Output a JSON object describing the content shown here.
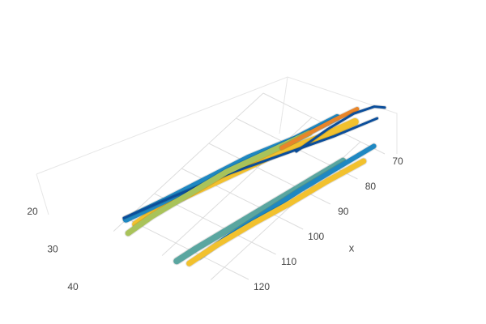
{
  "chart_data": {
    "type": "streamtube",
    "xaxis_title": "x",
    "xlim": [
      70,
      125
    ],
    "xticks": [
      70,
      80,
      90,
      100,
      110,
      120
    ],
    "ylim": [
      20,
      45
    ],
    "yticks": [
      20,
      30,
      40
    ],
    "grid": true,
    "series": [
      {
        "color": "#f2c12e",
        "width": 9,
        "x": [
          72,
          80,
          90,
          100,
          110,
          118,
          124
        ],
        "y": [
          40,
          37,
          33,
          30,
          27,
          25,
          24
        ],
        "z": [
          14,
          12,
          11,
          10,
          9,
          9,
          8
        ]
      },
      {
        "color": "#1f88c2",
        "width": 8,
        "x": [
          75,
          85,
          95,
          105,
          115,
          124
        ],
        "y": [
          38,
          35,
          31,
          28,
          25,
          22
        ],
        "z": [
          18,
          16,
          14,
          12,
          10,
          8
        ]
      },
      {
        "color": "#0b4e9b",
        "width": 3,
        "x": [
          71,
          80,
          90,
          100,
          112,
          123
        ],
        "y": [
          44,
          40,
          35,
          30,
          25,
          21
        ],
        "z": [
          20,
          17,
          14,
          11,
          8,
          6
        ]
      },
      {
        "color": "#a9c35a",
        "width": 7,
        "x": [
          78,
          88,
          98,
          108,
          118,
          125
        ],
        "y": [
          34,
          31,
          28,
          26,
          24,
          23
        ],
        "z": [
          8,
          7,
          6,
          5,
          4,
          3
        ]
      },
      {
        "color": "#e8852a",
        "width": 5,
        "x": [
          73,
          78,
          84,
          90
        ],
        "y": [
          41,
          39,
          37,
          35
        ],
        "z": [
          24,
          22,
          20,
          18
        ]
      },
      {
        "color": "#5aa6a0",
        "width": 8,
        "x": [
          80,
          90,
          100,
          110,
          120,
          125
        ],
        "y": [
          42,
          40,
          38,
          36,
          34,
          33
        ],
        "z": [
          6,
          5,
          4,
          3,
          2,
          1
        ]
      },
      {
        "color": "#1f88c2",
        "width": 6,
        "x": [
          74,
          84,
          94,
          104,
          114,
          122
        ],
        "y": [
          45,
          43,
          41,
          39,
          37,
          36
        ],
        "z": [
          10,
          9,
          8,
          6,
          4,
          3
        ]
      },
      {
        "color": "#f2c12e",
        "width": 7,
        "x": [
          76,
          86,
          96,
          106,
          116,
          124
        ],
        "y": [
          44,
          42,
          40,
          38,
          36,
          35
        ],
        "z": [
          3,
          3,
          2,
          2,
          1,
          1
        ]
      },
      {
        "color": "#0b4e9b",
        "width": 3,
        "x": [
          70,
          72,
          76,
          82,
          90
        ],
        "y": [
          45,
          44,
          42,
          40,
          38
        ],
        "z": [
          26,
          28,
          27,
          24,
          20
        ]
      }
    ]
  }
}
